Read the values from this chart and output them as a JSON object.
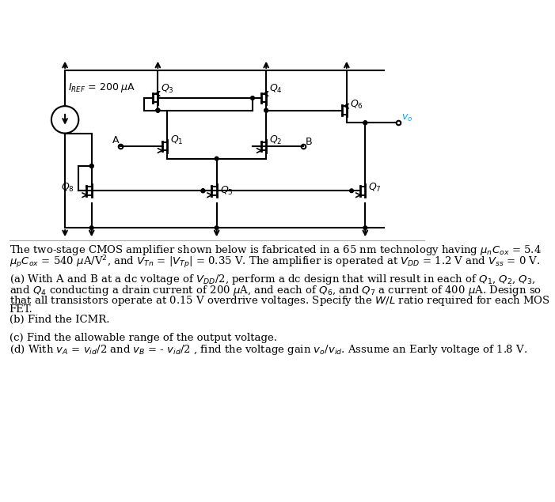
{
  "bg_color": "#ffffff",
  "text_color": "#000000",
  "line_color": "#000000",
  "fig_width": 7.01,
  "fig_height": 6.35,
  "title_text": "The two-stage CMOS amplifier shown below is fabricated in a 65 nm technology having $\\mu_n C_{ox}$ = 5.4",
  "line2_text": "$\\mu_p C_{ox}$ = 540 μA/V², and $V_{Tn}$ = |$V_{Tp}$| = 0.35 V. The amplifier is operated at $V_{DD}$ = 1.2 V and $V_{ss}$ = 0 V.",
  "para_a": "(a) With A and B at a dc voltage of $V_{DD}$/2, perform a dc design that will result in each of $Q_1$, $Q_2$, $Q_3$,",
  "para_a2": "and $Q_4$ conducting a drain current of 200 μA, and each of $Q_6$, and $Q_7$ a current of 400 μA. Design so",
  "para_a3": "that all transistors operate at 0.15 V overdrive voltages. Specify the W/L ratio required for each MOS",
  "para_a4": "FET.",
  "para_b": "(b) Find the ICMR.",
  "para_c": "(c) Find the allowable range of the output voltage.",
  "para_d": "(d) With $v_A$ = $v_{id}$/2 and $v_B$ = - $v_{id}$/2 , find the voltage gain $v_o$/$v_{id}$. Assume an Early voltage of 1.8 V."
}
